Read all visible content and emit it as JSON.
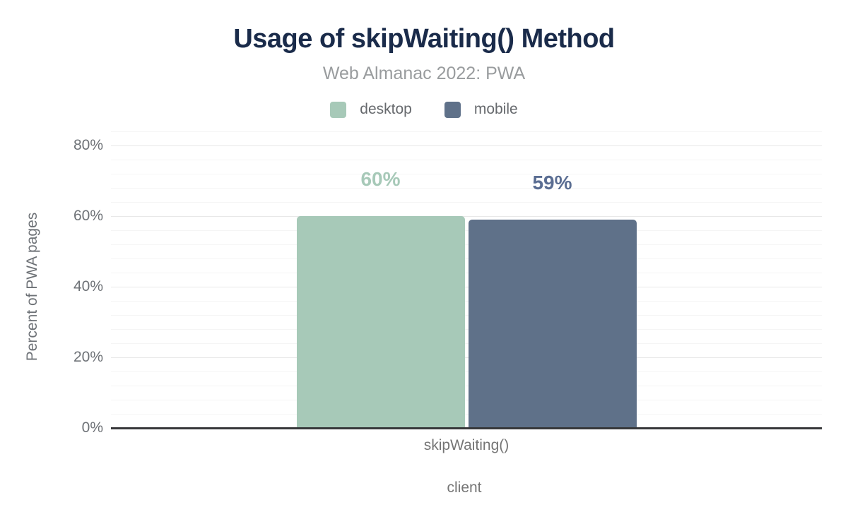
{
  "header": {
    "title": "Usage of skipWaiting() Method",
    "subtitle": "Web Almanac 2022: PWA"
  },
  "legend": {
    "items": [
      {
        "label": "desktop",
        "color": "#a7c9b8"
      },
      {
        "label": "mobile",
        "color": "#5f7189"
      }
    ]
  },
  "chart_data": {
    "type": "bar",
    "title": "Usage of skipWaiting() Method",
    "subtitle": "Web Almanac 2022: PWA",
    "categories": [
      "skipWaiting()"
    ],
    "series": [
      {
        "name": "desktop",
        "values": [
          60
        ],
        "data_labels": [
          "60%"
        ],
        "color": "#a7c9b8",
        "label_color": "#a7c9b8"
      },
      {
        "name": "mobile",
        "values": [
          59
        ],
        "data_labels": [
          "59%"
        ],
        "color": "#5f7189",
        "label_color": "#5a6d92"
      }
    ],
    "xlabel": "client",
    "ylabel": "Percent of PWA pages",
    "ylim": [
      0,
      84
    ],
    "yticks": [
      {
        "value": 0,
        "label": "0%"
      },
      {
        "value": 20,
        "label": "20%"
      },
      {
        "value": 40,
        "label": "40%"
      },
      {
        "value": 60,
        "label": "60%"
      },
      {
        "value": 80,
        "label": "80%"
      }
    ],
    "grid": {
      "major_step": 20,
      "minor_step": 4,
      "minor_on": true
    },
    "legend_position": "top"
  }
}
